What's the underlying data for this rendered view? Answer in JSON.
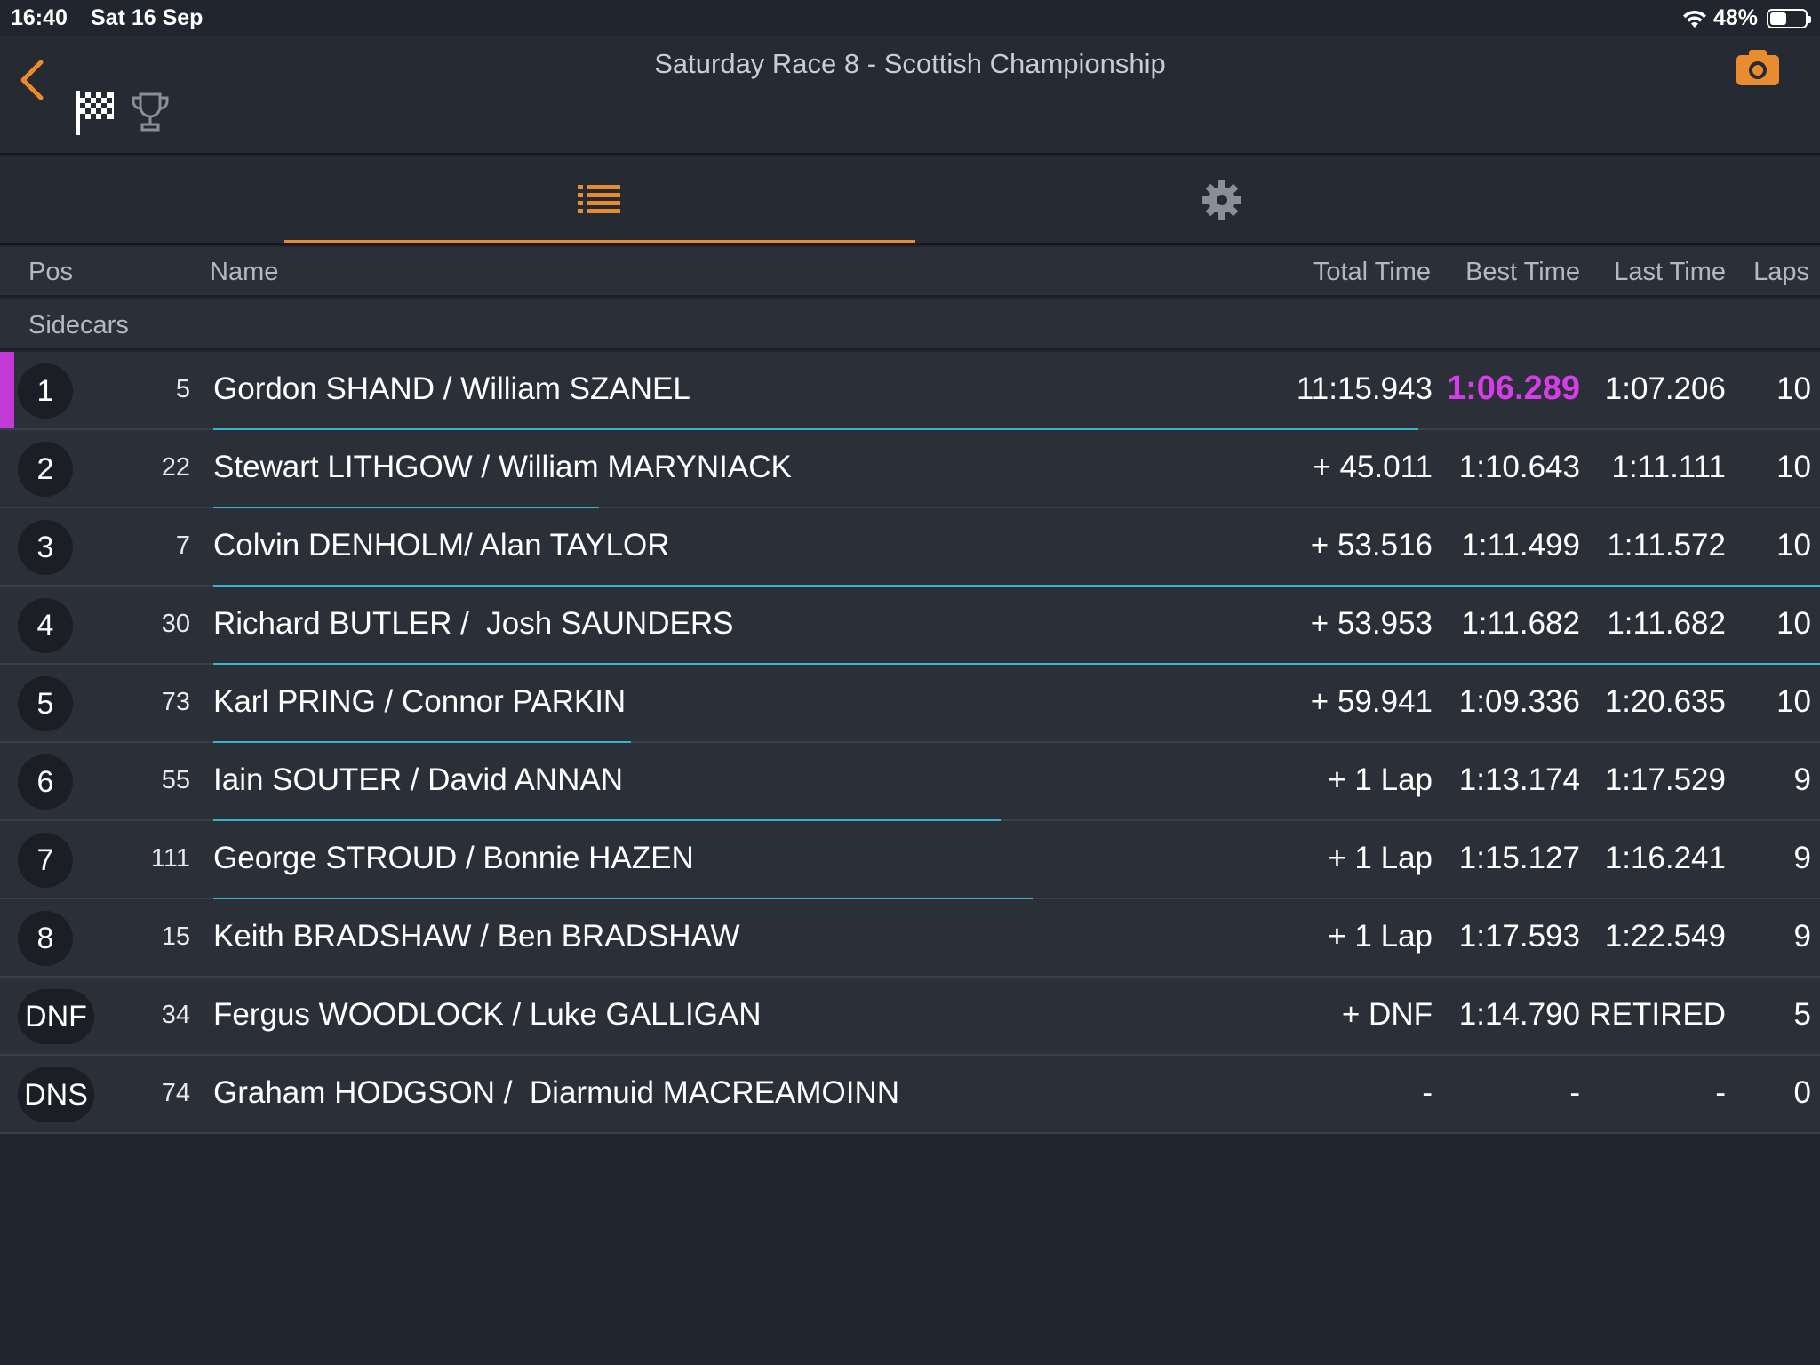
{
  "status_bar": {
    "time": "16:40",
    "date": "Sat 16 Sep",
    "battery": "48%",
    "battery_level": 0.48
  },
  "header": {
    "title": "Saturday Race 8 - Scottish Championship"
  },
  "colors": {
    "accent": "#e98b2f",
    "fastest": "#d63ce8",
    "progress": "#38b3cc"
  },
  "icons": [
    "back-chevron-icon",
    "checkered-flag-icon",
    "trophy-icon",
    "camera-icon",
    "list-icon",
    "gear-icon",
    "wifi-icon",
    "battery-icon"
  ],
  "columns": {
    "pos": "Pos",
    "name": "Name",
    "total": "Total Time",
    "best": "Best Time",
    "last": "Last Time",
    "laps": "Laps"
  },
  "class_label": "Sidecars",
  "results": [
    {
      "pos": "1",
      "num": "5",
      "name": "Gordon SHAND / William SZANEL",
      "total": "11:15.943",
      "best": "1:06.289",
      "last": "1:07.206",
      "laps": "10",
      "fastest": true,
      "progress": 0.75
    },
    {
      "pos": "2",
      "num": "22",
      "name": "Stewart LITHGOW / William MARYNIACK",
      "total": "+ 45.011",
      "best": "1:10.643",
      "last": "1:11.111",
      "laps": "10",
      "progress": 0.24
    },
    {
      "pos": "3",
      "num": "7",
      "name": "Colvin DENHOLM/ Alan TAYLOR",
      "total": "+ 53.516",
      "best": "1:11.499",
      "last": "1:11.572",
      "laps": "10",
      "progress": 1.0
    },
    {
      "pos": "4",
      "num": "30",
      "name": "Richard BUTLER /  Josh SAUNDERS",
      "total": "+ 53.953",
      "best": "1:11.682",
      "last": "1:11.682",
      "laps": "10",
      "progress": 1.0
    },
    {
      "pos": "5",
      "num": "73",
      "name": "Karl PRING / Connor PARKIN",
      "total": "+ 59.941",
      "best": "1:09.336",
      "last": "1:20.635",
      "laps": "10",
      "progress": 0.26
    },
    {
      "pos": "6",
      "num": "55",
      "name": "Iain SOUTER / David ANNAN",
      "total": "+ 1 Lap",
      "best": "1:13.174",
      "last": "1:17.529",
      "laps": "9",
      "progress": 0.49
    },
    {
      "pos": "7",
      "num": "111",
      "name": "George STROUD / Bonnie HAZEN",
      "total": "+ 1 Lap",
      "best": "1:15.127",
      "last": "1:16.241",
      "laps": "9",
      "progress": 0.51
    },
    {
      "pos": "8",
      "num": "15",
      "name": "Keith BRADSHAW / Ben BRADSHAW",
      "total": "+ 1 Lap",
      "best": "1:17.593",
      "last": "1:22.549",
      "laps": "9",
      "progress": 0
    },
    {
      "pos": "DNF",
      "num": "34",
      "name": "Fergus WOODLOCK / Luke GALLIGAN",
      "total": "+ DNF",
      "best": "1:14.790",
      "last": "RETIRED",
      "laps": "5",
      "progress": 0
    },
    {
      "pos": "DNS",
      "num": "74",
      "name": "Graham HODGSON /  Diarmuid MACREAMOINN",
      "total": "-",
      "best": "-",
      "last": "-",
      "laps": "0",
      "progress": 0
    }
  ]
}
